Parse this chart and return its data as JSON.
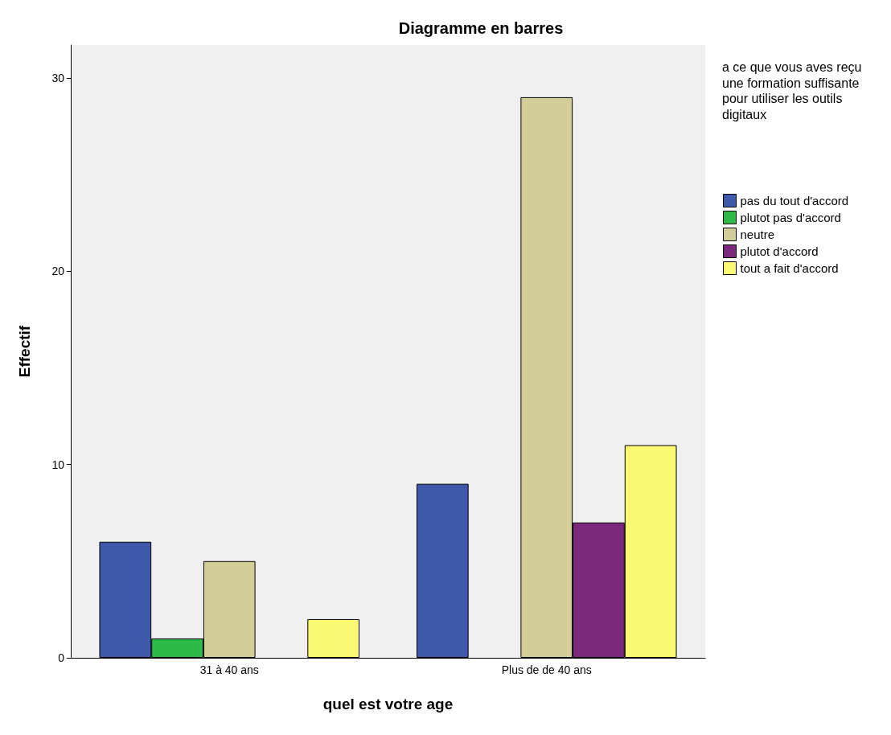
{
  "chart_data": {
    "type": "bar",
    "title": "Diagramme en barres",
    "xlabel": "quel est votre age",
    "ylabel": "Effectif",
    "legend_title": "a ce que vous aves reçu une formation suffisante pour utiliser les outils digitaux",
    "categories": [
      "31 à 40 ans",
      "Plus de de 40 ans"
    ],
    "series": [
      {
        "name": "pas du tout d'accord",
        "color": "#3e58ac",
        "values": [
          6,
          9
        ]
      },
      {
        "name": "plutot pas d'accord",
        "color": "#2eb848",
        "values": [
          1,
          null
        ]
      },
      {
        "name": "neutre",
        "color": "#d3ce97",
        "values": [
          5,
          29
        ]
      },
      {
        "name": "plutot d'accord",
        "color": "#79287b",
        "values": [
          null,
          7
        ]
      },
      {
        "name": "tout a fait d'accord",
        "color": "#fbf873",
        "values": [
          2,
          11
        ]
      }
    ],
    "ylim": [
      0,
      31.7
    ],
    "yticks": [
      0,
      10,
      20,
      30
    ],
    "grid": false,
    "legend": "right"
  }
}
